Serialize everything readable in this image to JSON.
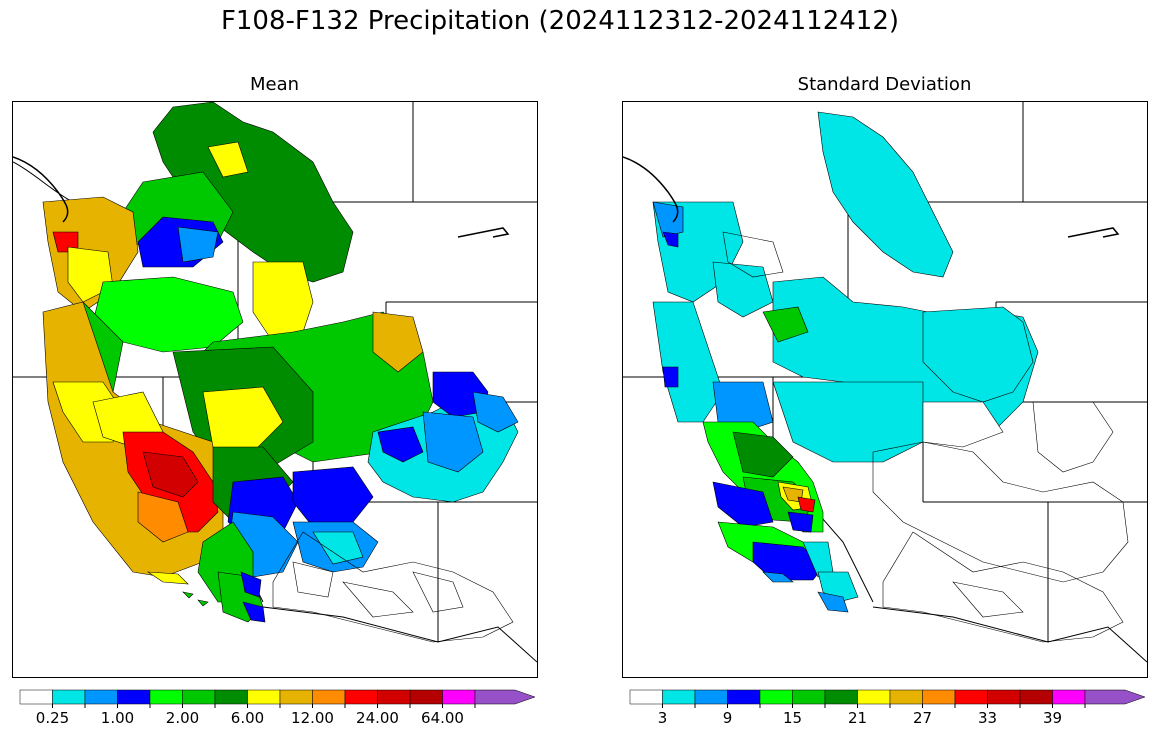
{
  "figure": {
    "title": "F108-F132 Precipitation (2024112312-2024112412)"
  },
  "panels": {
    "left": {
      "title": "Mean",
      "colorbar_colors": [
        "#ffffff",
        "#00e5e5",
        "#0096ff",
        "#0000ff",
        "#00ff00",
        "#00c800",
        "#008c00",
        "#ffff00",
        "#e6b400",
        "#ff8c00",
        "#ff0000",
        "#d20000",
        "#b40000",
        "#ff00ff",
        "#9650c8"
      ],
      "colorbar_labels": [
        "0.25",
        "1.00",
        "2.00",
        "6.00",
        "12.00",
        "24.00",
        "64.00"
      ]
    },
    "right": {
      "title": "Standard Deviation",
      "colorbar_colors": [
        "#ffffff",
        "#00e5e5",
        "#0096ff",
        "#0000ff",
        "#00ff00",
        "#00c800",
        "#008c00",
        "#ffff00",
        "#e6b400",
        "#ff8c00",
        "#ff0000",
        "#d20000",
        "#b40000",
        "#ff00ff",
        "#9650c8"
      ],
      "colorbar_labels": [
        "3",
        "9",
        "15",
        "21",
        "27",
        "33",
        "39"
      ]
    }
  }
}
